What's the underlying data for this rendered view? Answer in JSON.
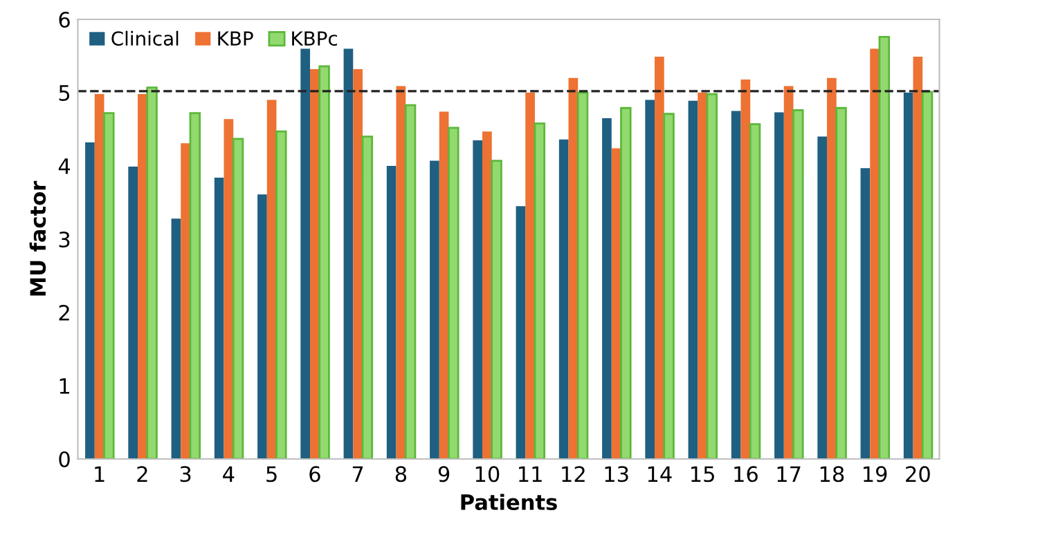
{
  "chart_data": {
    "type": "bar",
    "xlabel": "Patients",
    "ylabel": "MU factor",
    "categories": [
      "1",
      "2",
      "3",
      "4",
      "5",
      "6",
      "7",
      "8",
      "9",
      "10",
      "11",
      "12",
      "13",
      "14",
      "15",
      "16",
      "17",
      "18",
      "19",
      "20"
    ],
    "series": [
      {
        "name": "Clinical",
        "color": "#1f5f82",
        "values": [
          4.32,
          3.99,
          3.28,
          3.84,
          3.61,
          5.6,
          5.6,
          4.0,
          4.07,
          4.35,
          3.45,
          4.36,
          4.65,
          4.9,
          4.89,
          4.75,
          4.73,
          4.4,
          3.97,
          5.0
        ]
      },
      {
        "name": "KBP",
        "color": "#ed7233",
        "values": [
          4.98,
          4.98,
          4.31,
          4.64,
          4.9,
          5.32,
          5.32,
          5.09,
          4.74,
          4.47,
          5.0,
          5.2,
          4.24,
          5.49,
          5.0,
          5.18,
          5.09,
          5.2,
          5.6,
          5.49
        ]
      },
      {
        "name": "KBPc",
        "color": "#92d96f",
        "values": [
          4.72,
          5.07,
          4.72,
          4.37,
          4.47,
          5.36,
          4.4,
          4.83,
          4.52,
          4.07,
          4.58,
          5.0,
          4.79,
          4.71,
          4.98,
          4.57,
          4.76,
          4.79,
          5.76,
          5.01
        ]
      }
    ],
    "ylim": [
      0,
      6
    ],
    "yticks": [
      0,
      1,
      2,
      3,
      4,
      5,
      6
    ],
    "grid": false,
    "legend": "top left",
    "ref_lines": [
      {
        "axis": "y",
        "value": 5.02,
        "color": "#222222",
        "line_style": "dashed"
      }
    ]
  }
}
